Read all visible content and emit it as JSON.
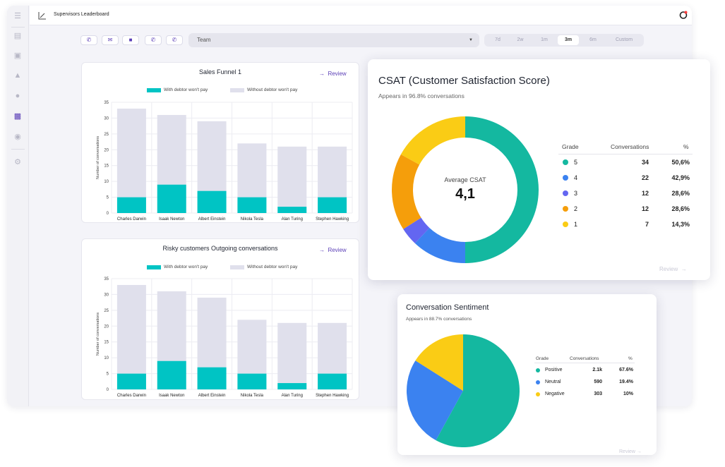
{
  "app": {
    "title": "Supervisors Leaderboard"
  },
  "sidebar": {
    "icons": [
      "menu-icon",
      "inbox-icon",
      "archive-icon",
      "graduation-icon",
      "users-icon",
      "chart-icon",
      "person-icon",
      "settings-icon"
    ]
  },
  "filters": {
    "channels": [
      "phone-icon",
      "mail-icon",
      "chat-icon",
      "call-in-icon",
      "call-out-icon"
    ],
    "team": {
      "value": "Team"
    },
    "ranges": [
      "7d",
      "2w",
      "1m",
      "3m",
      "6m",
      "Custom"
    ],
    "active_range": "3m"
  },
  "colors": {
    "accent": "#5b3fb7",
    "teal": "#00c4c4",
    "lavender": "#e0e0ec"
  },
  "chart_data": [
    {
      "type": "bar",
      "title": "Sales Funnel 1",
      "review_label": "Review",
      "ylabel": "Number of conversations",
      "ylim": [
        0,
        35
      ],
      "yticks": [
        0,
        5,
        10,
        15,
        20,
        25,
        30,
        35
      ],
      "categories": [
        "Charles Darwin",
        "Isaak Newton",
        "Albert Einstein",
        "Nikola Tesla",
        "Alan Turing",
        "Stephen Hawking"
      ],
      "legend": [
        "With debtor won't pay",
        "Without debtor won't pay"
      ],
      "series": [
        {
          "name": "With debtor won't pay",
          "color": "#00c4c4",
          "values": [
            5,
            9,
            7,
            5,
            2,
            5
          ]
        },
        {
          "name": "Without debtor won't pay",
          "color": "#e0e0ec",
          "values": [
            28,
            22,
            22,
            17,
            19,
            16
          ]
        }
      ]
    },
    {
      "type": "bar",
      "title": "Risky customers Outgoing conversations",
      "review_label": "Review",
      "ylabel": "Number of conversations",
      "ylim": [
        0,
        35
      ],
      "yticks": [
        0,
        5,
        10,
        15,
        20,
        25,
        30,
        35
      ],
      "categories": [
        "Charles Darwin",
        "Isaak Newton",
        "Albert Einstein",
        "Nikola Tesla",
        "Alan Turing",
        "Stephen Hawking"
      ],
      "legend": [
        "With debtor won't pay",
        "Without debtor won't pay"
      ],
      "series": [
        {
          "name": "With debtor won't pay",
          "color": "#00c4c4",
          "values": [
            5,
            9,
            7,
            5,
            2,
            5
          ]
        },
        {
          "name": "Without debtor won't pay",
          "color": "#e0e0ec",
          "values": [
            28,
            22,
            22,
            17,
            19,
            16
          ]
        }
      ]
    },
    {
      "type": "pie",
      "title": "CSAT (Customer Satisfaction Score)",
      "subtitle": "Appears in 96.8% conversations",
      "center_label": "Average CSAT",
      "center_value": "4,1",
      "review_label": "Review",
      "columns": [
        "Grade",
        "Conversations",
        "%"
      ],
      "rows": [
        {
          "grade": "5",
          "conversations": 34,
          "pct": "50,6%",
          "color": "#14b8a0"
        },
        {
          "grade": "4",
          "conversations": 22,
          "pct": "42,9%",
          "color": "#3b82f0"
        },
        {
          "grade": "3",
          "conversations": 12,
          "pct": "28,6%",
          "color": "#6366f1"
        },
        {
          "grade": "2",
          "conversations": 12,
          "pct": "28,6%",
          "color": "#f59e0b"
        },
        {
          "grade": "1",
          "conversations": 7,
          "pct": "14,3%",
          "color": "#facc15"
        }
      ],
      "slices": [
        {
          "label": "5",
          "value": 50,
          "color": "#14b8a0"
        },
        {
          "label": "4",
          "value": 12,
          "color": "#3b82f0"
        },
        {
          "label": "3",
          "value": 4,
          "color": "#6366f1"
        },
        {
          "label": "2",
          "value": 17,
          "color": "#f59e0b"
        },
        {
          "label": "1",
          "value": 17,
          "color": "#facc15"
        }
      ]
    },
    {
      "type": "pie",
      "title": "Conversation Sentiment",
      "subtitle": "Appears in 88.7% conversations",
      "review_label": "Review",
      "columns": [
        "Grade",
        "Conversations",
        "%"
      ],
      "rows": [
        {
          "grade": "Positive",
          "conversations": "2.1k",
          "pct": "67.6%",
          "color": "#14b8a0"
        },
        {
          "grade": "Neutral",
          "conversations": "590",
          "pct": "19.4%",
          "color": "#3b82f0"
        },
        {
          "grade": "Negative",
          "conversations": "303",
          "pct": "10%",
          "color": "#facc15"
        }
      ],
      "slices": [
        {
          "label": "Positive",
          "value": 58,
          "color": "#14b8a0"
        },
        {
          "label": "Neutral",
          "value": 26,
          "color": "#3b82f0"
        },
        {
          "label": "Negative",
          "value": 16,
          "color": "#facc15"
        }
      ]
    }
  ]
}
